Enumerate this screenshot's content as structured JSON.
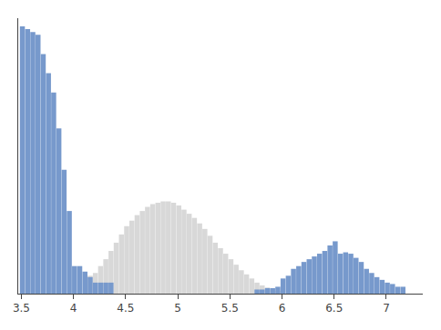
{
  "chart_data": {
    "type": "bar",
    "series": [
      {
        "color": "#d8d8d8",
        "x": [
          4.16,
          4.21,
          4.26,
          4.31,
          4.36,
          4.41,
          4.46,
          4.51,
          4.56,
          4.61,
          4.66,
          4.71,
          4.76,
          4.81,
          4.86,
          4.91,
          4.96,
          5.01,
          5.06,
          5.11,
          5.16,
          5.21,
          5.26,
          5.31,
          5.36,
          5.41,
          5.46,
          5.51,
          5.56,
          5.61,
          5.66,
          5.71,
          5.76,
          5.81,
          5.86,
          5.91,
          5.96
        ],
        "values": [
          0.065,
          0.075,
          0.1,
          0.125,
          0.155,
          0.185,
          0.215,
          0.245,
          0.265,
          0.285,
          0.3,
          0.315,
          0.325,
          0.33,
          0.335,
          0.335,
          0.33,
          0.32,
          0.305,
          0.29,
          0.275,
          0.255,
          0.235,
          0.21,
          0.185,
          0.165,
          0.145,
          0.125,
          0.105,
          0.085,
          0.07,
          0.055,
          0.04,
          0.03,
          0.022,
          0.015,
          0.01
        ]
      },
      {
        "color": "#7799cc",
        "x": [
          3.51,
          3.56,
          3.61,
          3.66,
          3.71,
          3.76,
          3.81,
          3.86,
          3.91,
          3.96,
          4.01,
          4.06,
          4.11,
          4.16,
          4.21,
          4.26,
          4.31,
          4.36,
          5.76,
          5.81,
          5.86,
          5.91,
          5.96,
          6.01,
          6.06,
          6.11,
          6.16,
          6.21,
          6.26,
          6.31,
          6.36,
          6.41,
          6.46,
          6.51,
          6.56,
          6.61,
          6.66,
          6.71,
          6.76,
          6.81,
          6.86,
          6.91,
          6.96,
          7.01,
          7.06,
          7.11,
          7.16
        ],
        "values": [
          0.97,
          0.96,
          0.95,
          0.94,
          0.87,
          0.8,
          0.73,
          0.6,
          0.45,
          0.3,
          0.1,
          0.1,
          0.08,
          0.06,
          0.04,
          0.04,
          0.04,
          0.04,
          0.015,
          0.015,
          0.02,
          0.02,
          0.025,
          0.055,
          0.065,
          0.09,
          0.1,
          0.115,
          0.125,
          0.135,
          0.145,
          0.155,
          0.175,
          0.19,
          0.145,
          0.15,
          0.145,
          0.13,
          0.115,
          0.09,
          0.075,
          0.06,
          0.05,
          0.04,
          0.035,
          0.025,
          0.025
        ]
      }
    ],
    "xlim": [
      3.47,
      7.35
    ],
    "xticks": [
      3.5,
      4,
      4.5,
      5,
      5.5,
      6,
      6.5,
      7
    ],
    "ylim": [
      0,
      1.0
    ],
    "yticks": [],
    "tick_labels": "x",
    "grid": false
  }
}
